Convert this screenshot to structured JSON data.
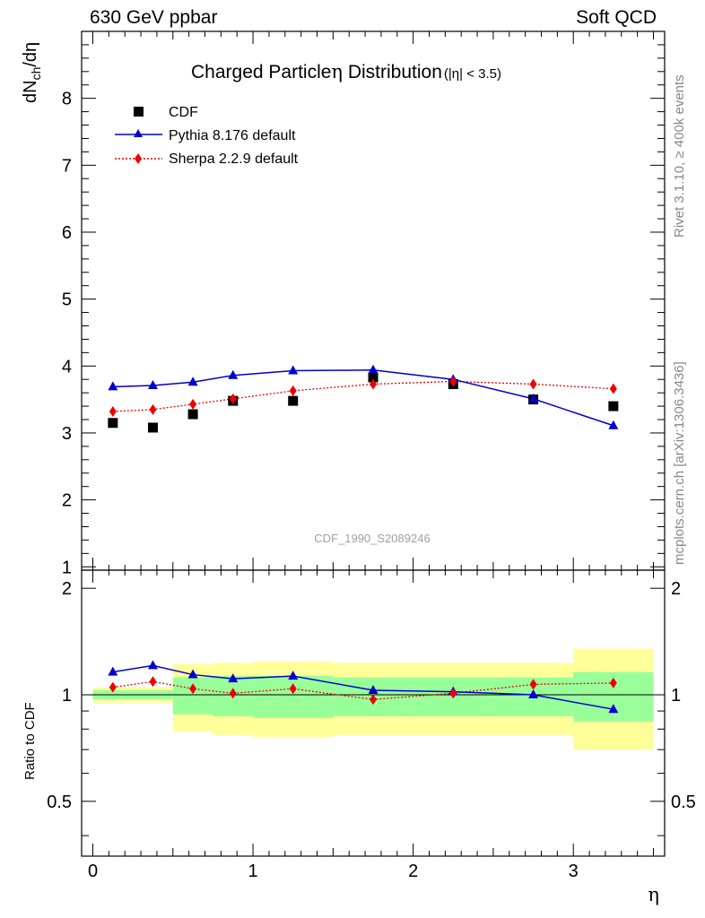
{
  "header": {
    "left": "630 GeV ppbar",
    "right": "Soft QCD"
  },
  "side_text": {
    "rivet": "Rivet 3.1.10, ≥ 400k events",
    "mcplots": "mcplots.cern.ch [arXiv:1306.3436]"
  },
  "chart_data": {
    "type": "line",
    "title": "Charged Particle",
    "title_symbol": "η",
    "title_suffix": " Distribution",
    "title_cut": "(|η| < 3.5)",
    "analysis_id": "CDF_1990_S2089246",
    "xlabel": "η",
    "ylabel_main": "dN",
    "ylabel_sub": "ch",
    "ylabel_tail": "/dη",
    "ylabel_ratio": "Ratio to CDF",
    "xlim": [
      -0.07,
      3.57
    ],
    "ylim_main": [
      0.95,
      9.0
    ],
    "ylim_ratio": [
      0.35,
      2.25
    ],
    "x_ticks": [
      "0",
      "1",
      "2",
      "3"
    ],
    "y_ticks_main": [
      "1",
      "2",
      "3",
      "4",
      "5",
      "6",
      "7",
      "8"
    ],
    "y_ticks_ratio": [
      "0.5",
      "1",
      "2"
    ],
    "legend": {
      "placement": "top-left",
      "entries": [
        "CDF",
        "Pythia 8.176 default",
        "Sherpa 2.2.9 default"
      ]
    },
    "x": [
      0.125,
      0.375,
      0.625,
      0.875,
      1.25,
      1.75,
      2.25,
      2.75,
      3.25
    ],
    "bins": [
      [
        0.0,
        0.25
      ],
      [
        0.25,
        0.5
      ],
      [
        0.5,
        0.75
      ],
      [
        0.75,
        1.0
      ],
      [
        1.0,
        1.5
      ],
      [
        1.5,
        2.0
      ],
      [
        2.0,
        2.5
      ],
      [
        2.5,
        3.0
      ],
      [
        3.0,
        3.5
      ]
    ],
    "series": [
      {
        "name": "CDF",
        "color": "#000000",
        "marker": "square",
        "values": [
          3.15,
          3.08,
          3.28,
          3.48,
          3.48,
          3.83,
          3.73,
          3.5,
          3.4
        ]
      },
      {
        "name": "Pythia 8.176 default",
        "color": "#0000cc",
        "marker": "triangle",
        "values": [
          3.69,
          3.71,
          3.76,
          3.86,
          3.93,
          3.94,
          3.8,
          3.51,
          3.11
        ]
      },
      {
        "name": "Sherpa 2.2.9 default",
        "color": "#ee0000",
        "marker": "diamond",
        "values": [
          3.32,
          3.35,
          3.43,
          3.51,
          3.63,
          3.73,
          3.77,
          3.73,
          3.66
        ]
      }
    ],
    "ratio": {
      "pythia": [
        1.16,
        1.21,
        1.14,
        1.11,
        1.13,
        1.03,
        1.02,
        1.0,
        0.91
      ],
      "sherpa": [
        1.05,
        1.09,
        1.04,
        1.01,
        1.04,
        0.97,
        1.01,
        1.07,
        1.08
      ]
    },
    "bands": {
      "inner": [
        [
          0.97,
          1.03
        ],
        [
          0.97,
          1.03
        ],
        [
          0.88,
          1.12
        ],
        [
          0.87,
          1.13
        ],
        [
          0.86,
          1.13
        ],
        [
          0.87,
          1.12
        ],
        [
          0.87,
          1.12
        ],
        [
          0.87,
          1.12
        ],
        [
          0.84,
          1.16
        ]
      ],
      "outer": [
        [
          0.95,
          1.05
        ],
        [
          0.95,
          1.05
        ],
        [
          0.79,
          1.22
        ],
        [
          0.77,
          1.23
        ],
        [
          0.76,
          1.24
        ],
        [
          0.77,
          1.23
        ],
        [
          0.77,
          1.23
        ],
        [
          0.77,
          1.23
        ],
        [
          0.7,
          1.35
        ]
      ],
      "inner_color": "#99ff99",
      "outer_color": "#ffff99"
    }
  }
}
